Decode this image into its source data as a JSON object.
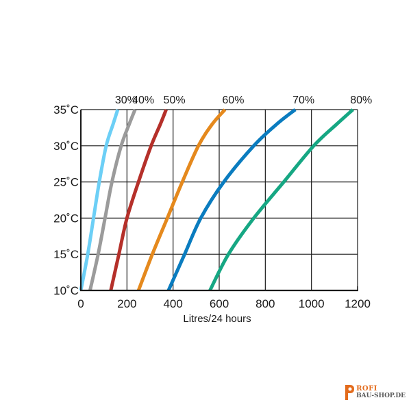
{
  "chart_data": {
    "type": "line",
    "title": "",
    "xlabel": "Litres/24 hours",
    "ylabel": "",
    "xlim": [
      0,
      1200
    ],
    "ylim": [
      10,
      35
    ],
    "x_ticks": [
      0,
      200,
      400,
      600,
      800,
      1000,
      1200
    ],
    "y_ticks": [
      10,
      15,
      20,
      25,
      30,
      35
    ],
    "x_tick_labels": [
      "0",
      "200",
      "400",
      "600",
      "800",
      "1000",
      "1200"
    ],
    "y_tick_labels": [
      "10˚C",
      "15˚C",
      "20˚C",
      "25˚C",
      "30˚C",
      "35˚C"
    ],
    "grid": true,
    "series": [
      {
        "name": "30%",
        "color": "#6ccff6",
        "points": [
          [
            0,
            10
          ],
          [
            30,
            15
          ],
          [
            55,
            20
          ],
          [
            80,
            25
          ],
          [
            110,
            30
          ],
          [
            140,
            33
          ],
          [
            160,
            35
          ]
        ]
      },
      {
        "name": "40%",
        "color": "#9b9b9b",
        "points": [
          [
            40,
            10
          ],
          [
            75,
            15
          ],
          [
            105,
            20
          ],
          [
            135,
            25
          ],
          [
            175,
            30
          ],
          [
            210,
            33
          ],
          [
            235,
            35
          ]
        ]
      },
      {
        "name": "50%",
        "color": "#b5302a",
        "points": [
          [
            130,
            10
          ],
          [
            165,
            15
          ],
          [
            200,
            20
          ],
          [
            250,
            25
          ],
          [
            305,
            30
          ],
          [
            345,
            33
          ],
          [
            370,
            35
          ]
        ]
      },
      {
        "name": "60%",
        "color": "#e5891d",
        "points": [
          [
            250,
            10
          ],
          [
            310,
            15
          ],
          [
            375,
            20
          ],
          [
            440,
            25
          ],
          [
            510,
            30
          ],
          [
            570,
            33
          ],
          [
            625,
            35
          ]
        ]
      },
      {
        "name": "70%",
        "color": "#0a7cbf",
        "points": [
          [
            380,
            10
          ],
          [
            450,
            15
          ],
          [
            520,
            20
          ],
          [
            620,
            25
          ],
          [
            750,
            30
          ],
          [
            850,
            33
          ],
          [
            930,
            35
          ]
        ]
      },
      {
        "name": "80%",
        "color": "#16a783",
        "points": [
          [
            560,
            10
          ],
          [
            640,
            15
          ],
          [
            750,
            20
          ],
          [
            880,
            25
          ],
          [
            1010,
            30
          ],
          [
            1110,
            33
          ],
          [
            1180,
            35
          ]
        ]
      }
    ]
  },
  "logo": {
    "line1": "ROFI",
    "line2": "BAU-SHOP.DE",
    "color": "#e36b1c"
  }
}
